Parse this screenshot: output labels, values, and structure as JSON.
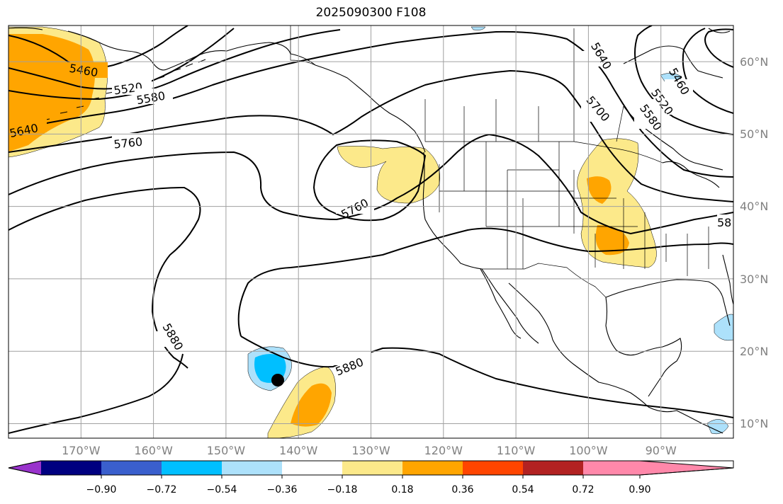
{
  "title": "2025090300 F108",
  "map": {
    "projection": "cylindrical",
    "extent_lon": [
      -180,
      -80
    ],
    "extent_lat": [
      8,
      65
    ],
    "lat_labels": [
      "10°N",
      "20°N",
      "30°N",
      "40°N",
      "50°N",
      "60°N"
    ],
    "lon_labels": [
      "170°W",
      "160°W",
      "150°W",
      "140°W",
      "130°W",
      "120°W",
      "110°W",
      "100°W",
      "90°W"
    ],
    "contour_labels": [
      "5460",
      "5520",
      "5580",
      "5640",
      "5760",
      "5760",
      "5880",
      "5880",
      "5640",
      "5700",
      "5460",
      "5520",
      "5580",
      "58"
    ],
    "storm_marker": {
      "lon": -142.8,
      "lat": 16.0
    },
    "colors": {
      "positive_1": "#fce98a",
      "positive_2": "#ffa500",
      "negative_1": "#ade1fb",
      "negative_2": "#00bfff",
      "grid": "#a0a0a0",
      "label": "#808080"
    }
  },
  "colorbar": {
    "ticks": [
      "−0.90",
      "−0.72",
      "−0.54",
      "−0.36",
      "−0.18",
      "0.18",
      "0.36",
      "0.54",
      "0.72",
      "0.90"
    ],
    "colors": [
      "#9933cc",
      "#000080",
      "#3a5fcd",
      "#00bfff",
      "#ade1fb",
      "#ffffff",
      "#fce98a",
      "#ffa500",
      "#ff4500",
      "#b22222",
      "#ff88aa"
    ]
  }
}
